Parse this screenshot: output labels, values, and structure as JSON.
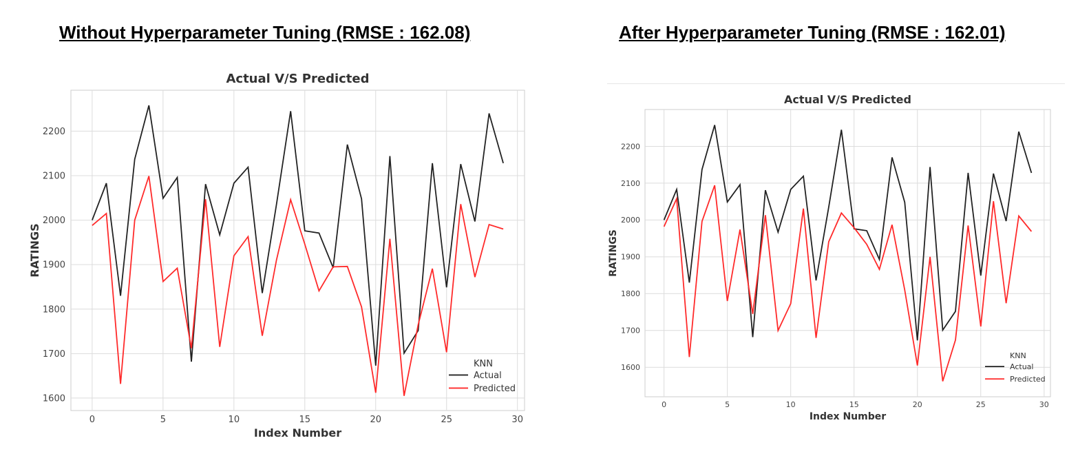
{
  "headings": {
    "left": "Without Hyperparameter Tuning (RMSE : 162.08)",
    "right": "After Hyperparameter Tuning (RMSE : 162.01)"
  },
  "colors": {
    "actual": "#222222",
    "predicted": "#ff2a2a",
    "grid": "#dcdcdc",
    "frame": "#cccccc"
  },
  "chart_data": [
    {
      "type": "line",
      "title": "Actual V/S Predicted",
      "xlabel": "Index Number",
      "ylabel": "RATINGS",
      "xlim": [
        -1.5,
        30.5
      ],
      "ylim": [
        1572,
        2292
      ],
      "xticks": [
        0,
        5,
        10,
        15,
        20,
        25,
        30
      ],
      "yticks": [
        1600,
        1700,
        1800,
        1900,
        2000,
        2100,
        2200
      ],
      "grid": true,
      "legend": {
        "title": "KNN",
        "placement": "bottom-right"
      },
      "x": [
        0,
        1,
        2,
        3,
        4,
        5,
        6,
        7,
        8,
        9,
        10,
        11,
        12,
        13,
        14,
        15,
        16,
        17,
        18,
        19,
        20,
        21,
        22,
        23,
        24,
        25,
        26,
        27,
        28,
        29
      ],
      "series": [
        {
          "name": "Actual",
          "color": "#222222",
          "values": [
            2000,
            2083,
            1830,
            2137,
            2258,
            2049,
            2096,
            1682,
            2081,
            1967,
            2083,
            2119,
            1836,
            2035,
            2245,
            1976,
            1971,
            1893,
            2170,
            2048,
            1673,
            2144,
            1701,
            1752,
            2128,
            1849,
            2126,
            1997,
            2240,
            2128
          ]
        },
        {
          "name": "Predicted",
          "color": "#ff2a2a",
          "values": [
            1988,
            2015,
            1632,
            2000,
            2099,
            1862,
            1892,
            1712,
            2047,
            1715,
            1920,
            1963,
            1740,
            1910,
            2046,
            1946,
            1841,
            1895,
            1896,
            1805,
            1612,
            1958,
            1605,
            1765,
            1891,
            1703,
            2036,
            1872,
            1990,
            1980
          ]
        }
      ]
    },
    {
      "type": "line",
      "title": "Actual V/S Predicted",
      "xlabel": "Index Number",
      "ylabel": "RATINGS",
      "xlim": [
        -1.5,
        30.5
      ],
      "ylim": [
        1520,
        2300
      ],
      "xticks": [
        0,
        5,
        10,
        15,
        20,
        25,
        30
      ],
      "yticks": [
        1600,
        1700,
        1800,
        1900,
        2000,
        2100,
        2200
      ],
      "grid": true,
      "legend": {
        "title": "KNN",
        "placement": "bottom-right"
      },
      "x": [
        0,
        1,
        2,
        3,
        4,
        5,
        6,
        7,
        8,
        9,
        10,
        11,
        12,
        13,
        14,
        15,
        16,
        17,
        18,
        19,
        20,
        21,
        22,
        23,
        24,
        25,
        26,
        27,
        28,
        29
      ],
      "series": [
        {
          "name": "Actual",
          "color": "#222222",
          "values": [
            2000,
            2083,
            1830,
            2137,
            2258,
            2049,
            2096,
            1682,
            2081,
            1967,
            2083,
            2119,
            1836,
            2035,
            2245,
            1976,
            1971,
            1893,
            2170,
            2048,
            1673,
            2144,
            1701,
            1752,
            2128,
            1849,
            2126,
            1997,
            2240,
            2128
          ]
        },
        {
          "name": "Predicted",
          "color": "#ff2a2a",
          "values": [
            1982,
            2058,
            1628,
            1996,
            2094,
            1780,
            1974,
            1745,
            2013,
            1700,
            1773,
            2031,
            1680,
            1941,
            2019,
            1979,
            1934,
            1866,
            1987,
            1810,
            1605,
            1900,
            1562,
            1674,
            1985,
            1711,
            2051,
            1774,
            2011,
            1969
          ]
        }
      ]
    }
  ]
}
